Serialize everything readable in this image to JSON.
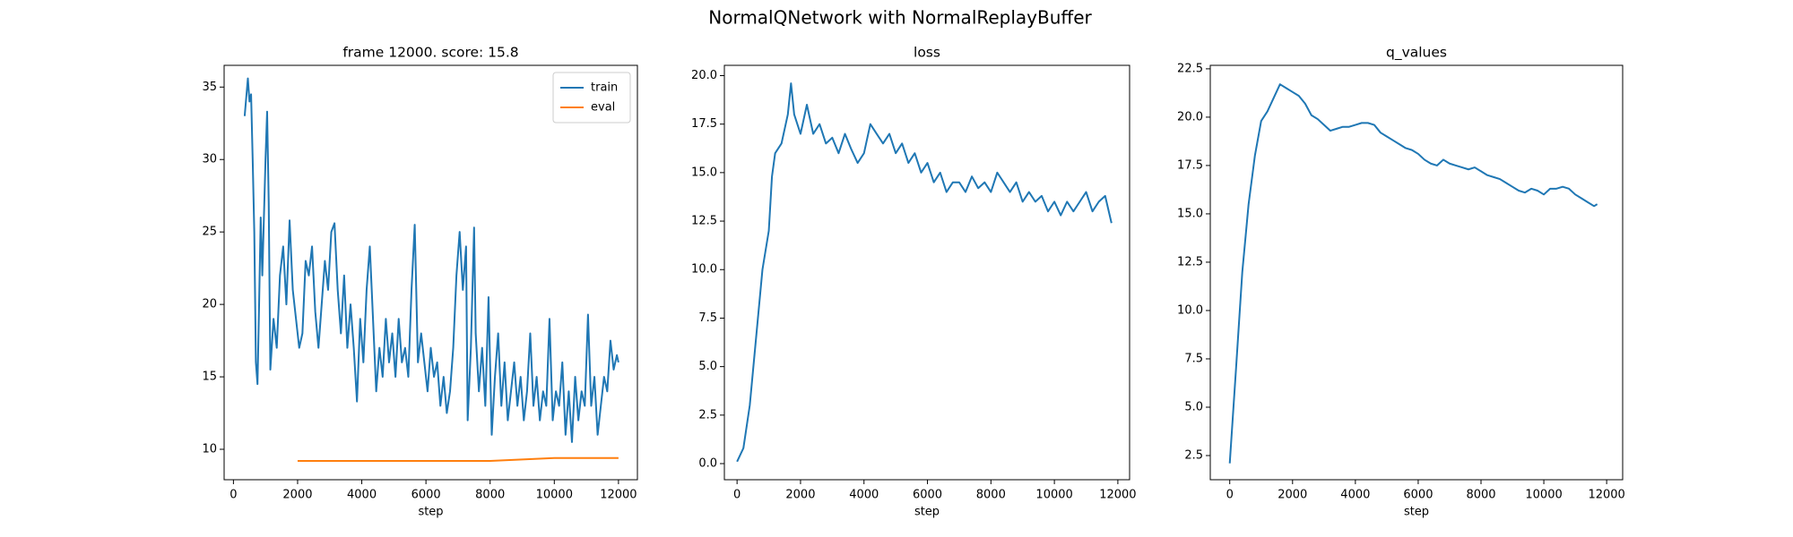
{
  "title": "NormalQNetwork with NormalReplayBuffer",
  "chart_data": [
    {
      "type": "line",
      "title": "frame 12000. score: 15.8",
      "xlabel": "step",
      "xlim": [
        -290,
        12590
      ],
      "ylim": [
        7.9,
        36.5
      ],
      "xticks": [
        0,
        2000,
        4000,
        6000,
        8000,
        10000,
        12000
      ],
      "yticks": [
        10,
        15,
        20,
        25,
        30,
        35
      ],
      "legend": "upper right",
      "series": [
        {
          "name": "train",
          "color": "#1f77b4",
          "x": [
            350,
            450,
            500,
            550,
            600,
            650,
            700,
            750,
            800,
            850,
            900,
            1000,
            1050,
            1100,
            1150,
            1250,
            1350,
            1450,
            1550,
            1650,
            1750,
            1850,
            1950,
            2050,
            2150,
            2250,
            2350,
            2450,
            2550,
            2650,
            2750,
            2850,
            2950,
            3050,
            3150,
            3250,
            3350,
            3450,
            3550,
            3650,
            3750,
            3850,
            3950,
            4050,
            4150,
            4250,
            4350,
            4450,
            4550,
            4650,
            4750,
            4850,
            4950,
            5050,
            5150,
            5250,
            5350,
            5450,
            5550,
            5650,
            5750,
            5850,
            5950,
            6050,
            6150,
            6250,
            6350,
            6450,
            6550,
            6650,
            6750,
            6850,
            6950,
            7050,
            7150,
            7250,
            7300,
            7400,
            7500,
            7550,
            7650,
            7750,
            7850,
            7950,
            8050,
            8150,
            8250,
            8350,
            8450,
            8550,
            8650,
            8750,
            8850,
            8950,
            9050,
            9150,
            9250,
            9350,
            9450,
            9550,
            9650,
            9750,
            9850,
            9950,
            10050,
            10150,
            10250,
            10350,
            10450,
            10550,
            10650,
            10750,
            10850,
            10950,
            11050,
            11150,
            11250,
            11350,
            11450,
            11550,
            11650,
            11750,
            11850,
            11950,
            12000
          ],
          "values": [
            33,
            35.6,
            34,
            34.5,
            30,
            25,
            16,
            14.5,
            20,
            26,
            22,
            30,
            33.3,
            27,
            15.5,
            19,
            17,
            22,
            24,
            20,
            25.8,
            21,
            19,
            17,
            18,
            23,
            22,
            24,
            19.5,
            17,
            20,
            23,
            21,
            25,
            25.6,
            21,
            18,
            22,
            17,
            20,
            17,
            13.3,
            19,
            16,
            21,
            24,
            19,
            14,
            17,
            15,
            19,
            16,
            18,
            15,
            19,
            16,
            17,
            15,
            21,
            25.5,
            16,
            18,
            16,
            14,
            17,
            15,
            16,
            13,
            15,
            12.5,
            14,
            17,
            22,
            25,
            21,
            24,
            12,
            17,
            25.3,
            18,
            14,
            17,
            13,
            20.5,
            11,
            15,
            18,
            13,
            16,
            12,
            14,
            16,
            13,
            15,
            12,
            14,
            18,
            13,
            15,
            12,
            14,
            13,
            19,
            12,
            14,
            13,
            16,
            11,
            14,
            10.5,
            15,
            12,
            14,
            13,
            19.3,
            13,
            15,
            11,
            13,
            15,
            14,
            17.5,
            15.5,
            16.5,
            16
          ]
        },
        {
          "name": "eval",
          "color": "#ff7f0e",
          "x": [
            2000,
            4000,
            6000,
            8000,
            10000,
            12000
          ],
          "values": [
            9.2,
            9.2,
            9.2,
            9.2,
            9.4,
            9.4
          ]
        }
      ]
    },
    {
      "type": "line",
      "title": "loss",
      "xlabel": "step",
      "xlim": [
        -400,
        12370
      ],
      "ylim": [
        -0.83,
        20.53
      ],
      "xticks": [
        0,
        2000,
        4000,
        6000,
        8000,
        10000,
        12000
      ],
      "yticks": [
        {
          "value": 0,
          "label": "0.0"
        },
        2.5,
        {
          "value": 5,
          "label": "5.0"
        },
        7.5,
        {
          "value": 10,
          "label": "10.0"
        },
        12.5,
        {
          "value": 15,
          "label": "15.0"
        },
        17.5,
        {
          "value": 20,
          "label": "20.0"
        }
      ],
      "series": [
        {
          "color": "#1f77b4",
          "x": [
            0,
            200,
            400,
            600,
            800,
            1000,
            1100,
            1200,
            1400,
            1600,
            1700,
            1800,
            2000,
            2200,
            2400,
            2600,
            2800,
            3000,
            3200,
            3400,
            3600,
            3800,
            4000,
            4200,
            4400,
            4600,
            4800,
            5000,
            5200,
            5400,
            5600,
            5800,
            6000,
            6200,
            6400,
            6600,
            6800,
            7000,
            7200,
            7400,
            7600,
            7800,
            8000,
            8200,
            8400,
            8600,
            8800,
            9000,
            9200,
            9400,
            9600,
            9800,
            10000,
            10200,
            10400,
            10600,
            10800,
            11000,
            11200,
            11400,
            11600,
            11800
          ],
          "values": [
            0.1,
            0.8,
            3,
            6.5,
            10,
            12,
            14.8,
            16,
            16.5,
            18,
            19.6,
            18,
            17,
            18.5,
            17,
            17.5,
            16.5,
            16.8,
            16,
            17,
            16.2,
            15.5,
            16,
            17.5,
            17,
            16.5,
            17,
            16,
            16.5,
            15.5,
            16,
            15,
            15.5,
            14.5,
            15,
            14,
            14.5,
            14.5,
            14,
            14.8,
            14.2,
            14.5,
            14,
            15,
            14.5,
            14,
            14.5,
            13.5,
            14,
            13.5,
            13.8,
            13,
            13.5,
            12.8,
            13.5,
            13,
            13.5,
            14,
            13,
            13.5,
            13.8,
            12.4
          ]
        }
      ]
    },
    {
      "type": "line",
      "title": "q_values",
      "xlabel": "step",
      "xlim": [
        -620,
        12510
      ],
      "ylim": [
        1.25,
        22.68
      ],
      "xticks": [
        0,
        2000,
        4000,
        6000,
        8000,
        10000,
        12000
      ],
      "yticks": [
        2.5,
        {
          "value": 5,
          "label": "5.0"
        },
        7.5,
        {
          "value": 10,
          "label": "10.0"
        },
        12.5,
        {
          "value": 15,
          "label": "15.0"
        },
        17.5,
        {
          "value": 20,
          "label": "20.0"
        },
        22.5
      ],
      "series": [
        {
          "color": "#1f77b4",
          "x": [
            0,
            200,
            400,
            600,
            800,
            1000,
            1200,
            1400,
            1600,
            1800,
            2000,
            2200,
            2400,
            2600,
            2800,
            3000,
            3200,
            3400,
            3600,
            3800,
            4000,
            4200,
            4400,
            4600,
            4800,
            5000,
            5200,
            5400,
            5600,
            5800,
            6000,
            6200,
            6400,
            6600,
            6800,
            7000,
            7200,
            7400,
            7600,
            7800,
            8000,
            8200,
            8400,
            8600,
            8800,
            9000,
            9200,
            9400,
            9600,
            9800,
            10000,
            10200,
            10400,
            10600,
            10800,
            11000,
            11200,
            11400,
            11600,
            11700
          ],
          "values": [
            2.1,
            7,
            12,
            15.5,
            18,
            19.8,
            20.3,
            21,
            21.7,
            21.5,
            21.3,
            21.1,
            20.7,
            20.1,
            19.9,
            19.6,
            19.3,
            19.4,
            19.5,
            19.5,
            19.6,
            19.7,
            19.7,
            19.6,
            19.2,
            19,
            18.8,
            18.6,
            18.4,
            18.3,
            18.1,
            17.8,
            17.6,
            17.5,
            17.8,
            17.6,
            17.5,
            17.4,
            17.3,
            17.4,
            17.2,
            17,
            16.9,
            16.8,
            16.6,
            16.4,
            16.2,
            16.1,
            16.3,
            16.2,
            16,
            16.3,
            16.3,
            16.4,
            16.3,
            16,
            15.8,
            15.6,
            15.4,
            15.5
          ]
        }
      ]
    }
  ]
}
